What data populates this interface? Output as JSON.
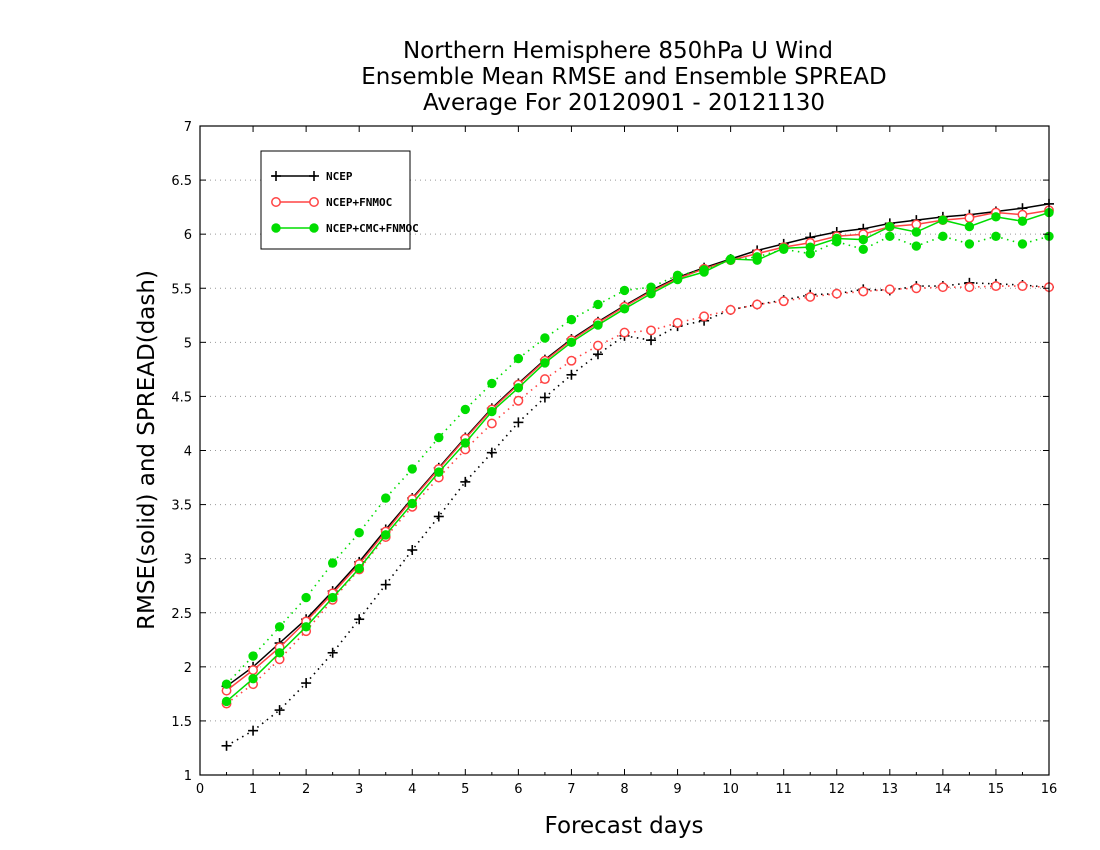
{
  "chart_data": {
    "type": "line",
    "title": [
      "Northern Hemisphere 850hPa U Wind",
      "Ensemble Mean RMSE and Ensemble SPREAD",
      "Average For 20120901 - 20121130"
    ],
    "xlabel": "Forecast days",
    "ylabel": "RMSE(solid) and SPREAD(dash)",
    "xlim": [
      0,
      16
    ],
    "ylim": [
      1,
      7
    ],
    "xticks": [
      "0",
      "1",
      "2",
      "3",
      "4",
      "5",
      "6",
      "7",
      "8",
      "9",
      "10",
      "11",
      "12",
      "13",
      "14",
      "15",
      "16"
    ],
    "yticks": [
      "1",
      "1.5",
      "2",
      "2.5",
      "3",
      "3.5",
      "4",
      "4.5",
      "5",
      "5.5",
      "6",
      "6.5",
      "7"
    ],
    "grid": "horizontal dotted",
    "legend_position": "top-left",
    "x": [
      0.5,
      1,
      1.5,
      2,
      2.5,
      3,
      3.5,
      4,
      4.5,
      5,
      5.5,
      6,
      6.5,
      7,
      7.5,
      8,
      8.5,
      9,
      9.5,
      10,
      10.5,
      11,
      11.5,
      12,
      12.5,
      13,
      13.5,
      14,
      14.5,
      15,
      15.5,
      16
    ],
    "series": [
      {
        "name": "NCEP",
        "color": "#000000",
        "marker": "plus",
        "style": "solid",
        "values": [
          1.82,
          2.0,
          2.22,
          2.44,
          2.7,
          2.97,
          3.27,
          3.56,
          3.84,
          4.12,
          4.39,
          4.62,
          4.84,
          5.03,
          5.19,
          5.34,
          5.48,
          5.6,
          5.69,
          5.77,
          5.85,
          5.91,
          5.97,
          6.02,
          6.05,
          6.1,
          6.13,
          6.16,
          6.18,
          6.21,
          6.24,
          6.28
        ]
      },
      {
        "name": "NCEP",
        "color": "#000000",
        "marker": "plus",
        "style": "dash",
        "values": [
          1.27,
          1.41,
          1.6,
          1.85,
          2.13,
          2.44,
          2.76,
          3.08,
          3.39,
          3.71,
          3.98,
          4.26,
          4.49,
          4.7,
          4.89,
          5.06,
          5.02,
          5.15,
          5.2,
          5.3,
          5.35,
          5.39,
          5.44,
          5.45,
          5.49,
          5.48,
          5.52,
          5.52,
          5.55,
          5.54,
          5.53,
          5.51
        ]
      },
      {
        "name": "NCEP+FNMOC",
        "color": "#ff4444",
        "marker": "circle",
        "style": "solid",
        "values": [
          1.78,
          1.97,
          2.18,
          2.42,
          2.68,
          2.95,
          3.25,
          3.55,
          3.83,
          4.11,
          4.38,
          4.61,
          4.83,
          5.02,
          5.18,
          5.33,
          5.47,
          5.59,
          5.68,
          5.76,
          5.82,
          5.88,
          5.92,
          5.98,
          6.0,
          6.07,
          6.09,
          6.13,
          6.15,
          6.2,
          6.18,
          6.22
        ]
      },
      {
        "name": "NCEP+FNMOC",
        "color": "#ff4444",
        "marker": "circle",
        "style": "dash",
        "values": [
          1.66,
          1.84,
          2.07,
          2.33,
          2.62,
          2.9,
          3.2,
          3.48,
          3.75,
          4.01,
          4.25,
          4.46,
          4.66,
          4.83,
          4.97,
          5.09,
          5.11,
          5.18,
          5.24,
          5.3,
          5.35,
          5.38,
          5.42,
          5.45,
          5.47,
          5.49,
          5.5,
          5.51,
          5.51,
          5.52,
          5.52,
          5.51
        ]
      },
      {
        "name": "NCEP+CMC+FNMOC",
        "color": "#00dd00",
        "marker": "dot",
        "style": "solid",
        "values": [
          1.68,
          1.89,
          2.13,
          2.37,
          2.64,
          2.91,
          3.22,
          3.51,
          3.8,
          4.07,
          4.36,
          4.58,
          4.81,
          5.0,
          5.16,
          5.31,
          5.45,
          5.58,
          5.65,
          5.77,
          5.76,
          5.87,
          5.88,
          5.96,
          5.95,
          6.07,
          6.02,
          6.13,
          6.07,
          6.16,
          6.12,
          6.2
        ]
      },
      {
        "name": "NCEP+CMC+FNMOC",
        "color": "#00dd00",
        "marker": "dot",
        "style": "dash",
        "values": [
          1.84,
          2.1,
          2.37,
          2.64,
          2.96,
          3.24,
          3.56,
          3.83,
          4.12,
          4.38,
          4.62,
          4.85,
          5.04,
          5.21,
          5.35,
          5.48,
          5.51,
          5.62,
          5.67,
          5.76,
          5.79,
          5.86,
          5.82,
          5.93,
          5.86,
          5.98,
          5.89,
          5.98,
          5.91,
          5.98,
          5.91,
          5.98
        ]
      }
    ],
    "legend": [
      {
        "label": "NCEP",
        "color": "#000000",
        "marker": "plus"
      },
      {
        "label": "NCEP+FNMOC",
        "color": "#ff4444",
        "marker": "circle"
      },
      {
        "label": "NCEP+CMC+FNMOC",
        "color": "#00dd00",
        "marker": "dot"
      }
    ]
  }
}
